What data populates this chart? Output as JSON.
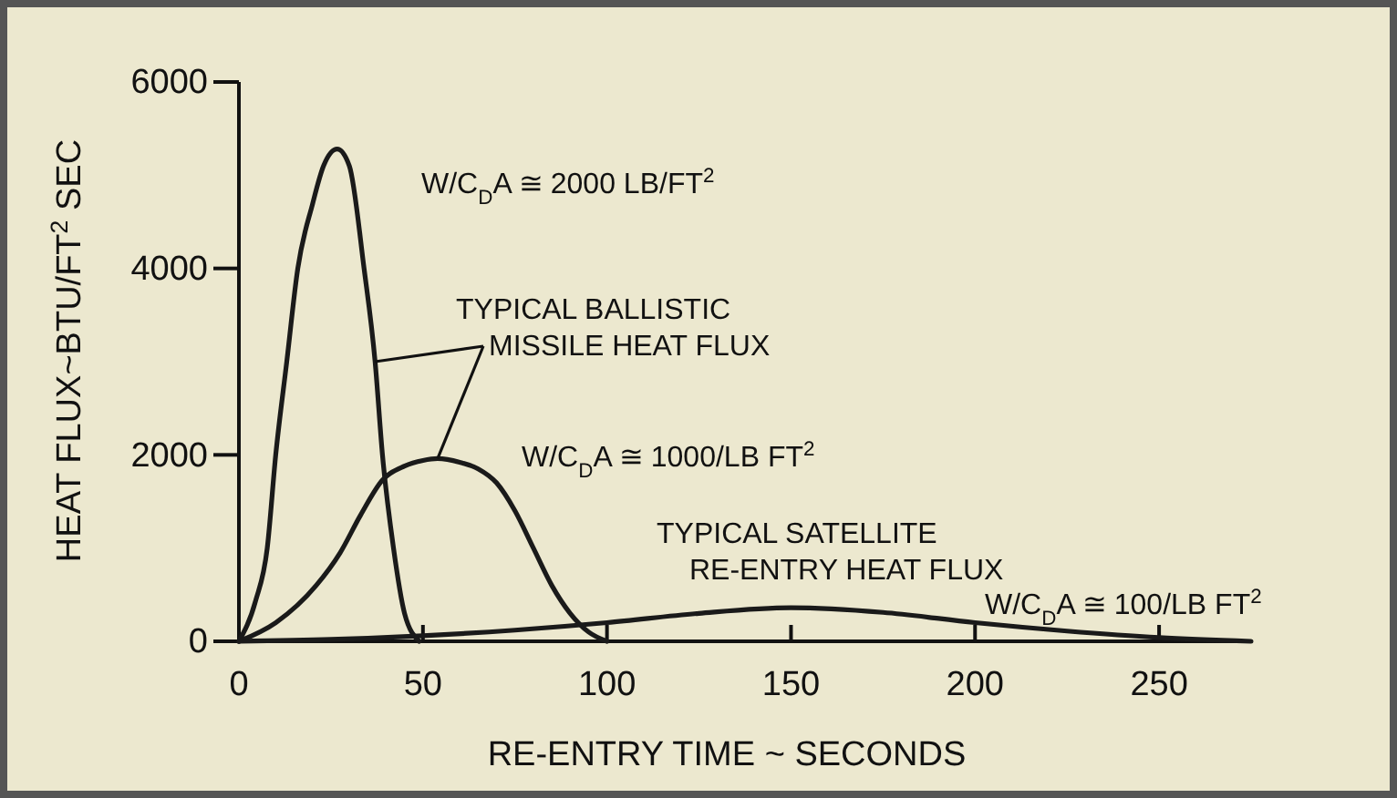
{
  "chart_data": {
    "type": "line",
    "xlabel": "RE-ENTRY  TIME ~ SECONDS",
    "ylabel": "HEAT  FLUX~BTU/FT$^{2}$ SEC",
    "xlim": [
      0,
      275
    ],
    "xticks": [
      0,
      50,
      100,
      150,
      200,
      250
    ],
    "ylim": [
      0,
      6000
    ],
    "yticks": [
      0,
      2000,
      4000,
      6000
    ],
    "grid": false,
    "marker": "none",
    "line_style": "solid",
    "series": [
      {
        "color": "#1a1a1a",
        "x": [
          0,
          4.5,
          7.7,
          10,
          13,
          16,
          20,
          23,
          26.7,
          30,
          34,
          37,
          39,
          42,
          45,
          49
        ],
        "values": [
          0,
          430,
          1000,
          2000,
          3000,
          4000,
          4690,
          5100,
          5280,
          5100,
          4000,
          3000,
          2000,
          1000,
          300,
          0
        ]
      },
      {
        "color": "#1a1a1a",
        "x": [
          0,
          10,
          21,
          27.5,
          33,
          39,
          45,
          50,
          54,
          60,
          65,
          70,
          75,
          80,
          85,
          90,
          95,
          100
        ],
        "values": [
          0,
          200,
          600,
          950,
          1350,
          1730,
          1880,
          1940,
          1960,
          1920,
          1850,
          1700,
          1400,
          1000,
          600,
          300,
          100,
          0
        ]
      },
      {
        "color": "#1a1a1a",
        "x": [
          0,
          25,
          50,
          75,
          100,
          125,
          150,
          175,
          200,
          225,
          250,
          275
        ],
        "values": [
          0,
          20,
          60,
          120,
          200,
          300,
          360,
          310,
          200,
          110,
          40,
          0
        ]
      }
    ],
    "annotations": [
      "W/C$_{D}$A ≅ 2000 LB/FT$^{2}$",
      {
        "text": "TYPICAL BALLISTIC MISSILE HEAT FLUX",
        "x": 54,
        "y": 1960
      },
      "W/C$_{D}$A ≅ 1000/LB FT$^{2}$",
      "TYPICAL SATELLITE RE-ENTRY HEAT FLUX",
      "W/C$_{D}$A ≅ 100/LB FT$^{2}$"
    ]
  }
}
